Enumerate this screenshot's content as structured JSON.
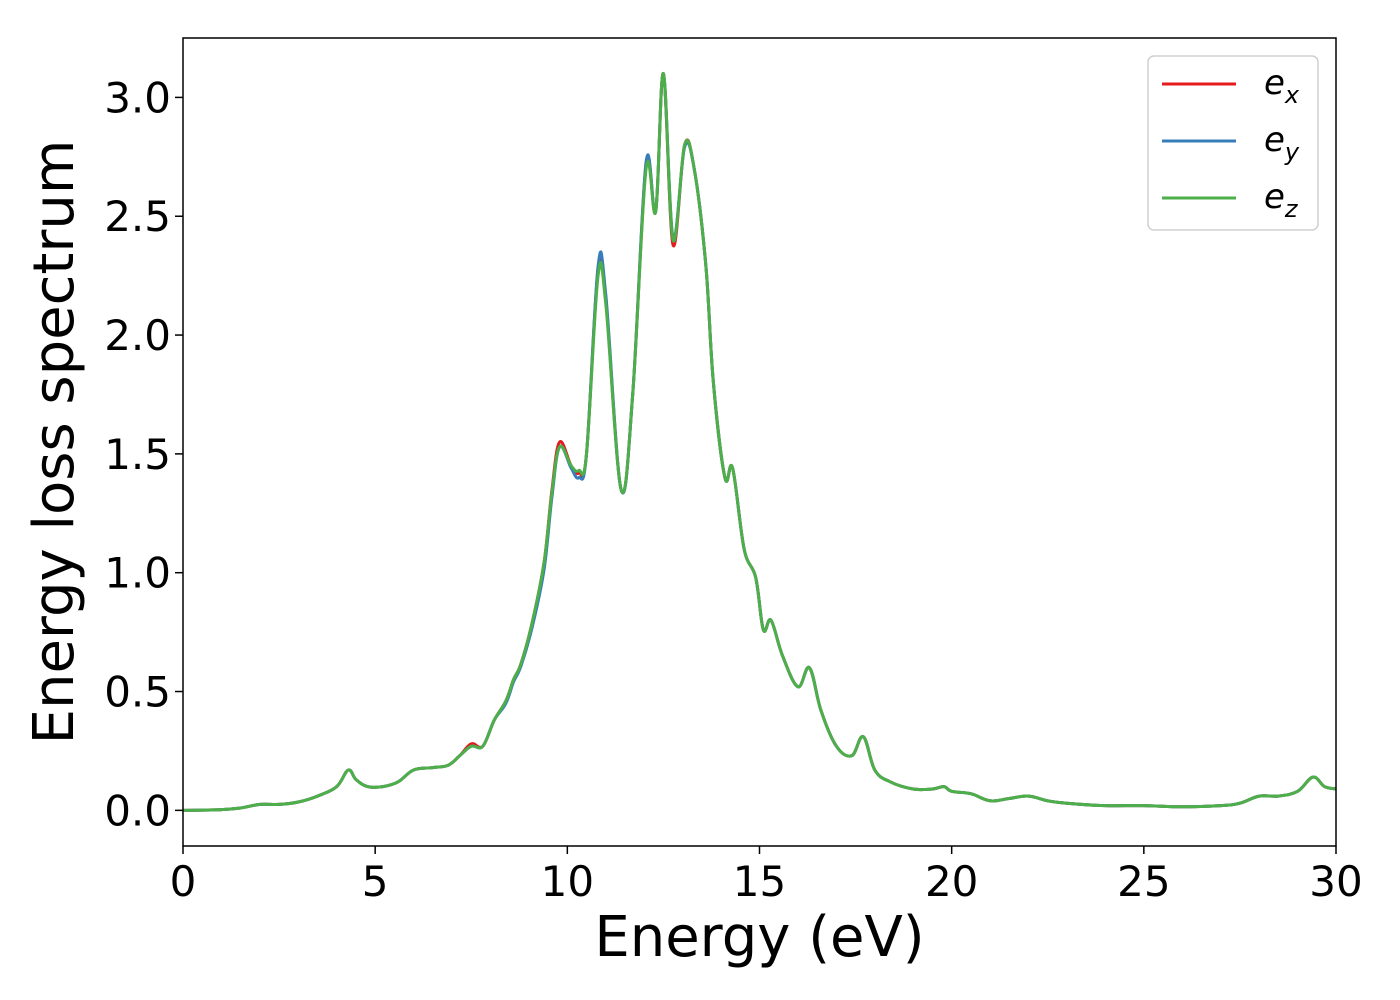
{
  "chart_data": {
    "type": "line",
    "title": "",
    "xlabel": "Energy (eV)",
    "ylabel": "Energy loss spectrum",
    "xlim": [
      0,
      30
    ],
    "ylim": [
      -0.15,
      3.25
    ],
    "xticks": [
      {
        "value": 0,
        "label": "0"
      },
      {
        "value": 5,
        "label": "5"
      },
      {
        "value": 10,
        "label": "10"
      },
      {
        "value": 15,
        "label": "15"
      },
      {
        "value": 20,
        "label": "20"
      },
      {
        "value": 25,
        "label": "25"
      },
      {
        "value": 30,
        "label": "30"
      }
    ],
    "yticks": [
      {
        "value": 0.0,
        "label": "0.0"
      },
      {
        "value": 0.5,
        "label": "0.5"
      },
      {
        "value": 1.0,
        "label": "1.0"
      },
      {
        "value": 1.5,
        "label": "1.5"
      },
      {
        "value": 2.0,
        "label": "2.0"
      },
      {
        "value": 2.5,
        "label": "2.5"
      },
      {
        "value": 3.0,
        "label": "3.0"
      }
    ],
    "grid": false,
    "legend_position": "top-right",
    "series": [
      {
        "name": "e",
        "subscript": "x",
        "color": "#e41a1c",
        "points": [
          [
            0,
            0
          ],
          [
            1,
            0.003
          ],
          [
            1.5,
            0.01
          ],
          [
            2,
            0.025
          ],
          [
            2.5,
            0.025
          ],
          [
            3,
            0.035
          ],
          [
            3.5,
            0.06
          ],
          [
            4,
            0.1
          ],
          [
            4.3,
            0.17
          ],
          [
            4.5,
            0.13
          ],
          [
            4.8,
            0.1
          ],
          [
            5.2,
            0.1
          ],
          [
            5.6,
            0.12
          ],
          [
            6,
            0.17
          ],
          [
            6.5,
            0.18
          ],
          [
            6.9,
            0.19
          ],
          [
            7.2,
            0.23
          ],
          [
            7.5,
            0.28
          ],
          [
            7.8,
            0.27
          ],
          [
            8.1,
            0.38
          ],
          [
            8.4,
            0.46
          ],
          [
            8.6,
            0.55
          ],
          [
            8.8,
            0.62
          ],
          [
            9.1,
            0.8
          ],
          [
            9.4,
            1.05
          ],
          [
            9.6,
            1.35
          ],
          [
            9.8,
            1.55
          ],
          [
            10.1,
            1.45
          ],
          [
            10.3,
            1.42
          ],
          [
            10.5,
            1.5
          ],
          [
            10.8,
            2.28
          ],
          [
            11.0,
            2.15
          ],
          [
            11.4,
            1.35
          ],
          [
            11.7,
            1.75
          ],
          [
            12.05,
            2.72
          ],
          [
            12.3,
            2.52
          ],
          [
            12.5,
            3.1
          ],
          [
            12.75,
            2.38
          ],
          [
            13.05,
            2.8
          ],
          [
            13.3,
            2.7
          ],
          [
            13.6,
            2.3
          ],
          [
            13.8,
            1.8
          ],
          [
            14.1,
            1.4
          ],
          [
            14.3,
            1.44
          ],
          [
            14.6,
            1.1
          ],
          [
            14.9,
            0.98
          ],
          [
            15.1,
            0.76
          ],
          [
            15.3,
            0.8
          ],
          [
            15.6,
            0.65
          ],
          [
            16.0,
            0.52
          ],
          [
            16.3,
            0.6
          ],
          [
            16.6,
            0.42
          ],
          [
            17.0,
            0.27
          ],
          [
            17.4,
            0.23
          ],
          [
            17.7,
            0.31
          ],
          [
            18.0,
            0.17
          ],
          [
            18.4,
            0.12
          ],
          [
            19.0,
            0.09
          ],
          [
            19.5,
            0.09
          ],
          [
            19.8,
            0.1
          ],
          [
            20.0,
            0.08
          ],
          [
            20.5,
            0.07
          ],
          [
            21.0,
            0.04
          ],
          [
            21.5,
            0.05
          ],
          [
            22.0,
            0.06
          ],
          [
            22.5,
            0.04
          ],
          [
            23.0,
            0.03
          ],
          [
            24.0,
            0.02
          ],
          [
            25,
            0.02
          ],
          [
            26,
            0.015
          ],
          [
            27,
            0.02
          ],
          [
            27.5,
            0.03
          ],
          [
            28,
            0.06
          ],
          [
            28.5,
            0.06
          ],
          [
            29,
            0.08
          ],
          [
            29.4,
            0.14
          ],
          [
            29.7,
            0.1
          ],
          [
            30,
            0.09
          ]
        ]
      },
      {
        "name": "e",
        "subscript": "y",
        "color": "#377eb8",
        "points": [
          [
            0,
            0
          ],
          [
            1,
            0.003
          ],
          [
            1.5,
            0.01
          ],
          [
            2,
            0.025
          ],
          [
            2.5,
            0.025
          ],
          [
            3,
            0.035
          ],
          [
            3.5,
            0.06
          ],
          [
            4,
            0.1
          ],
          [
            4.3,
            0.17
          ],
          [
            4.5,
            0.13
          ],
          [
            4.8,
            0.1
          ],
          [
            5.2,
            0.1
          ],
          [
            5.6,
            0.12
          ],
          [
            6,
            0.17
          ],
          [
            6.5,
            0.18
          ],
          [
            6.9,
            0.19
          ],
          [
            7.2,
            0.23
          ],
          [
            7.5,
            0.27
          ],
          [
            7.8,
            0.27
          ],
          [
            8.1,
            0.38
          ],
          [
            8.4,
            0.45
          ],
          [
            8.6,
            0.54
          ],
          [
            8.8,
            0.61
          ],
          [
            9.1,
            0.78
          ],
          [
            9.4,
            1.02
          ],
          [
            9.6,
            1.32
          ],
          [
            9.8,
            1.53
          ],
          [
            10.1,
            1.44
          ],
          [
            10.3,
            1.4
          ],
          [
            10.5,
            1.5
          ],
          [
            10.8,
            2.29
          ],
          [
            11.0,
            2.17
          ],
          [
            11.4,
            1.35
          ],
          [
            11.7,
            1.75
          ],
          [
            12.05,
            2.73
          ],
          [
            12.3,
            2.52
          ],
          [
            12.5,
            3.1
          ],
          [
            12.75,
            2.41
          ],
          [
            13.05,
            2.79
          ],
          [
            13.3,
            2.7
          ],
          [
            13.6,
            2.3
          ],
          [
            13.8,
            1.8
          ],
          [
            14.1,
            1.4
          ],
          [
            14.3,
            1.44
          ],
          [
            14.6,
            1.1
          ],
          [
            14.9,
            0.98
          ],
          [
            15.1,
            0.76
          ],
          [
            15.3,
            0.8
          ],
          [
            15.6,
            0.65
          ],
          [
            16.0,
            0.52
          ],
          [
            16.3,
            0.6
          ],
          [
            16.6,
            0.42
          ],
          [
            17.0,
            0.27
          ],
          [
            17.4,
            0.23
          ],
          [
            17.7,
            0.31
          ],
          [
            18.0,
            0.17
          ],
          [
            18.4,
            0.12
          ],
          [
            19.0,
            0.09
          ],
          [
            19.5,
            0.09
          ],
          [
            19.8,
            0.1
          ],
          [
            20.0,
            0.08
          ],
          [
            20.5,
            0.07
          ],
          [
            21.0,
            0.04
          ],
          [
            21.5,
            0.05
          ],
          [
            22.0,
            0.06
          ],
          [
            22.5,
            0.04
          ],
          [
            23.0,
            0.03
          ],
          [
            24.0,
            0.02
          ],
          [
            25,
            0.02
          ],
          [
            26,
            0.015
          ],
          [
            27,
            0.02
          ],
          [
            27.5,
            0.03
          ],
          [
            28,
            0.06
          ],
          [
            28.5,
            0.06
          ],
          [
            29,
            0.08
          ],
          [
            29.4,
            0.14
          ],
          [
            29.7,
            0.1
          ],
          [
            30,
            0.09
          ]
        ]
      },
      {
        "name": "e",
        "subscript": "z",
        "color": "#4daf4a",
        "points": [
          [
            0,
            0
          ],
          [
            1,
            0.003
          ],
          [
            1.5,
            0.01
          ],
          [
            2,
            0.025
          ],
          [
            2.5,
            0.025
          ],
          [
            3,
            0.035
          ],
          [
            3.5,
            0.06
          ],
          [
            4,
            0.1
          ],
          [
            4.3,
            0.17
          ],
          [
            4.5,
            0.13
          ],
          [
            4.8,
            0.1
          ],
          [
            5.2,
            0.1
          ],
          [
            5.6,
            0.12
          ],
          [
            6,
            0.17
          ],
          [
            6.5,
            0.18
          ],
          [
            6.9,
            0.19
          ],
          [
            7.2,
            0.23
          ],
          [
            7.5,
            0.27
          ],
          [
            7.8,
            0.27
          ],
          [
            8.1,
            0.38
          ],
          [
            8.4,
            0.46
          ],
          [
            8.6,
            0.55
          ],
          [
            8.8,
            0.62
          ],
          [
            9.1,
            0.8
          ],
          [
            9.4,
            1.05
          ],
          [
            9.6,
            1.34
          ],
          [
            9.8,
            1.53
          ],
          [
            10.1,
            1.45
          ],
          [
            10.3,
            1.43
          ],
          [
            10.5,
            1.5
          ],
          [
            10.8,
            2.25
          ],
          [
            11.0,
            2.13
          ],
          [
            11.4,
            1.35
          ],
          [
            11.7,
            1.75
          ],
          [
            12.05,
            2.7
          ],
          [
            12.3,
            2.52
          ],
          [
            12.5,
            3.1
          ],
          [
            12.75,
            2.4
          ],
          [
            13.05,
            2.8
          ],
          [
            13.3,
            2.7
          ],
          [
            13.6,
            2.3
          ],
          [
            13.8,
            1.8
          ],
          [
            14.1,
            1.4
          ],
          [
            14.3,
            1.44
          ],
          [
            14.6,
            1.1
          ],
          [
            14.9,
            0.98
          ],
          [
            15.1,
            0.76
          ],
          [
            15.3,
            0.8
          ],
          [
            15.6,
            0.65
          ],
          [
            16.0,
            0.52
          ],
          [
            16.3,
            0.6
          ],
          [
            16.6,
            0.42
          ],
          [
            17.0,
            0.27
          ],
          [
            17.4,
            0.23
          ],
          [
            17.7,
            0.31
          ],
          [
            18.0,
            0.17
          ],
          [
            18.4,
            0.12
          ],
          [
            19.0,
            0.09
          ],
          [
            19.5,
            0.09
          ],
          [
            19.8,
            0.1
          ],
          [
            20.0,
            0.08
          ],
          [
            20.5,
            0.07
          ],
          [
            21.0,
            0.04
          ],
          [
            21.5,
            0.05
          ],
          [
            22.0,
            0.06
          ],
          [
            22.5,
            0.04
          ],
          [
            23.0,
            0.03
          ],
          [
            24.0,
            0.02
          ],
          [
            25,
            0.02
          ],
          [
            26,
            0.015
          ],
          [
            27,
            0.02
          ],
          [
            27.5,
            0.03
          ],
          [
            28,
            0.06
          ],
          [
            28.5,
            0.06
          ],
          [
            29,
            0.08
          ],
          [
            29.4,
            0.14
          ],
          [
            29.7,
            0.1
          ],
          [
            30,
            0.09
          ]
        ]
      }
    ]
  }
}
